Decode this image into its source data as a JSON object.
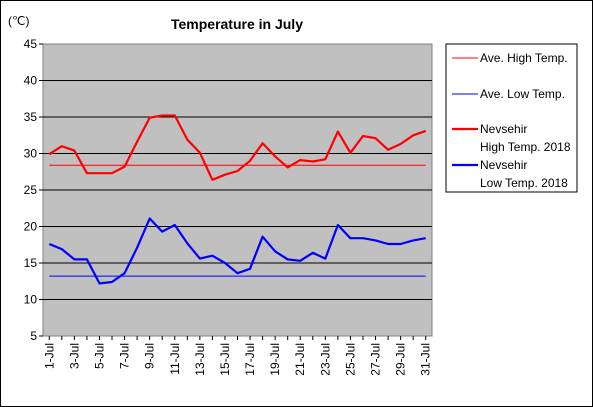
{
  "chart_data": {
    "type": "line",
    "title": "Temperature in July",
    "ylabel": "(℃)",
    "xlabel": "",
    "ylim": [
      5,
      45
    ],
    "yticks": [
      5,
      10,
      15,
      20,
      25,
      30,
      35,
      40,
      45
    ],
    "grid": true,
    "legend_position": "right",
    "x": [
      "1-Jul",
      "2-Jul",
      "3-Jul",
      "4-Jul",
      "5-Jul",
      "6-Jul",
      "7-Jul",
      "8-Jul",
      "9-Jul",
      "10-Jul",
      "11-Jul",
      "12-Jul",
      "13-Jul",
      "14-Jul",
      "15-Jul",
      "16-Jul",
      "17-Jul",
      "18-Jul",
      "19-Jul",
      "20-Jul",
      "21-Jul",
      "22-Jul",
      "23-Jul",
      "24-Jul",
      "25-Jul",
      "26-Jul",
      "27-Jul",
      "28-Jul",
      "29-Jul",
      "30-Jul",
      "31-Jul"
    ],
    "x_tick_labels": [
      "1-Jul",
      "3-Jul",
      "5-Jul",
      "7-Jul",
      "9-Jul",
      "11-Jul",
      "13-Jul",
      "15-Jul",
      "17-Jul",
      "19-Jul",
      "21-Jul",
      "23-Jul",
      "25-Jul",
      "27-Jul",
      "29-Jul",
      "31-Jul"
    ],
    "series": [
      {
        "name": "Ave. High Temp.",
        "color": "#ff0000",
        "width": 1,
        "values": [
          28.4,
          28.4,
          28.4,
          28.4,
          28.4,
          28.4,
          28.4,
          28.4,
          28.4,
          28.4,
          28.4,
          28.4,
          28.4,
          28.4,
          28.4,
          28.4,
          28.4,
          28.4,
          28.4,
          28.4,
          28.4,
          28.4,
          28.4,
          28.4,
          28.4,
          28.4,
          28.4,
          28.4,
          28.4,
          28.4,
          28.4
        ]
      },
      {
        "name": "Ave. Low Temp.",
        "color": "#0000ff",
        "width": 1,
        "values": [
          13.2,
          13.2,
          13.2,
          13.2,
          13.2,
          13.2,
          13.2,
          13.2,
          13.2,
          13.2,
          13.2,
          13.2,
          13.2,
          13.2,
          13.2,
          13.2,
          13.2,
          13.2,
          13.2,
          13.2,
          13.2,
          13.2,
          13.2,
          13.2,
          13.2,
          13.2,
          13.2,
          13.2,
          13.2,
          13.2,
          13.2
        ]
      },
      {
        "name": "Nevsehir High Temp. 2018",
        "name_lines": [
          "Nevsehir",
          "High Temp. 2018"
        ],
        "color": "#ff0000",
        "width": 2.2,
        "values": [
          29.9,
          31.0,
          30.4,
          27.3,
          27.3,
          27.3,
          28.2,
          31.6,
          34.9,
          35.2,
          35.2,
          31.9,
          30.1,
          26.4,
          27.1,
          27.6,
          29.0,
          31.4,
          29.6,
          28.1,
          29.1,
          28.9,
          29.2,
          33.0,
          30.1,
          32.4,
          32.1,
          30.5,
          31.3,
          32.5,
          33.1
        ]
      },
      {
        "name": "Nevsehir Low Temp. 2018",
        "name_lines": [
          "Nevsehir",
          "Low Temp. 2018"
        ],
        "color": "#0000ff",
        "width": 2.2,
        "values": [
          17.6,
          16.9,
          15.5,
          15.5,
          12.2,
          12.4,
          13.6,
          17.1,
          21.1,
          19.3,
          20.2,
          17.7,
          15.6,
          16.0,
          15.0,
          13.6,
          14.2,
          18.6,
          16.6,
          15.5,
          15.3,
          16.4,
          15.6,
          20.2,
          18.4,
          18.4,
          18.1,
          17.6,
          17.6,
          18.1,
          18.4
        ]
      }
    ]
  }
}
